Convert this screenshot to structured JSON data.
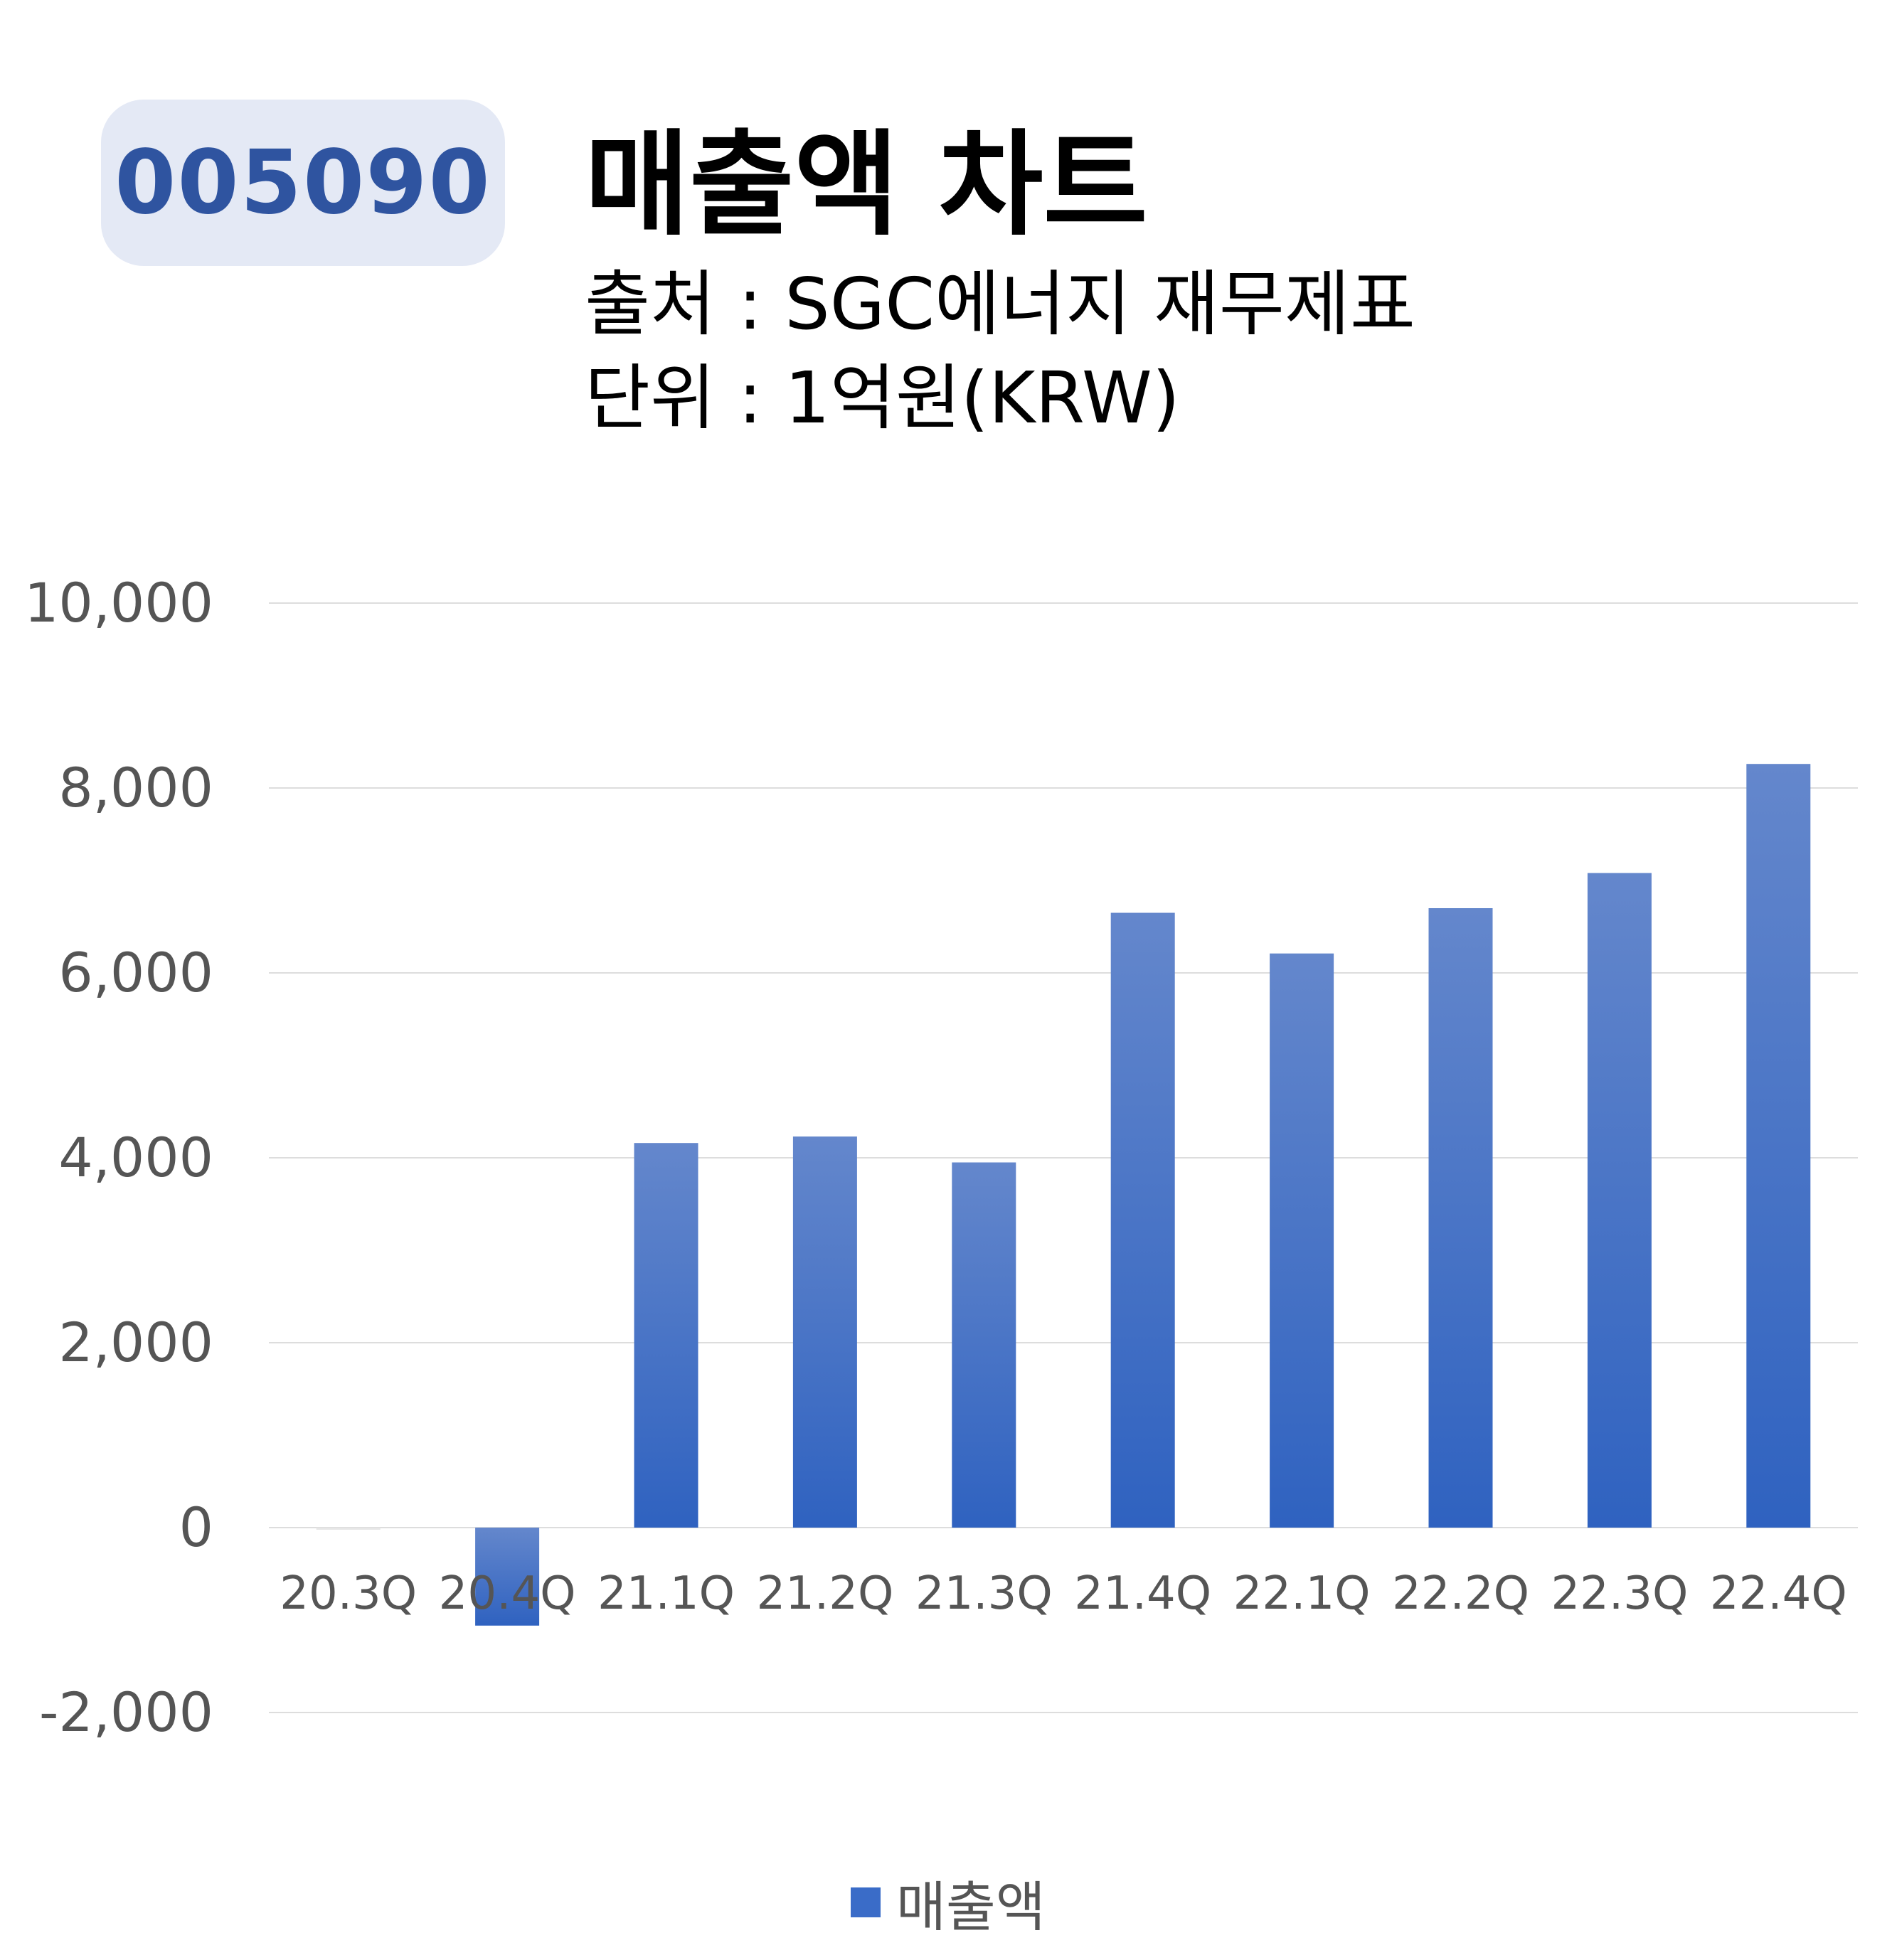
{
  "header": {
    "badge": "005090",
    "title": "매출액 차트",
    "source": "출처 : SGC에너지 재무제표",
    "unit": "단위 : 1억원(KRW)"
  },
  "chart_data": {
    "type": "bar",
    "categories": [
      "20.3Q",
      "20.4Q",
      "21.1Q",
      "21.2Q",
      "21.3Q",
      "21.4Q",
      "22.1Q",
      "22.2Q",
      "22.3Q",
      "22.4Q"
    ],
    "series": [
      {
        "name": "매출액",
        "values": [
          0,
          -1060,
          4160,
          4230,
          3950,
          6650,
          6210,
          6700,
          7080,
          8260
        ]
      }
    ],
    "yticks": [
      "10,000",
      "8,000",
      "6,000",
      "4,000",
      "2,000",
      "0",
      "-2,000"
    ],
    "ylim": [
      -2000,
      10000
    ],
    "grid": true,
    "legend": "bottom",
    "colors": {
      "bar_top": "#6487cc",
      "bar_bottom": "#2f62c0",
      "grid": "#dddddd",
      "tick": "#555555"
    }
  }
}
